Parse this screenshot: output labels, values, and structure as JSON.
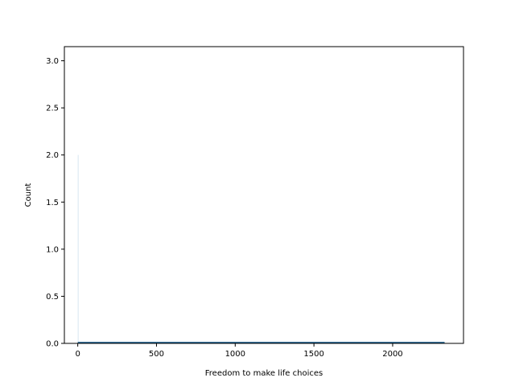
{
  "chart_data": {
    "type": "bar",
    "title": "",
    "xlabel": "Freedom to make life choices",
    "ylabel": "Count",
    "xlim": [
      -85,
      2450
    ],
    "ylim": [
      0,
      3.15
    ],
    "xticks": [
      0,
      500,
      1000,
      1500,
      2000
    ],
    "xtick_labels": [
      "0",
      "500",
      "1000",
      "1500",
      "2000"
    ],
    "yticks": [
      0.0,
      0.5,
      1.0,
      1.5,
      2.0,
      2.5,
      3.0
    ],
    "ytick_labels": [
      "0.0",
      "0.5",
      "1.0",
      "1.5",
      "2.0",
      "2.5",
      "3.0"
    ],
    "grid": false,
    "bars": [
      {
        "x_start": 0,
        "x_end": 3,
        "count": 2
      }
    ],
    "kde_line": {
      "x": [
        0,
        2330
      ],
      "y": [
        0.01,
        0.01
      ]
    },
    "colors": {
      "bar": "#aecde6",
      "line": "#1f5f8b"
    }
  }
}
